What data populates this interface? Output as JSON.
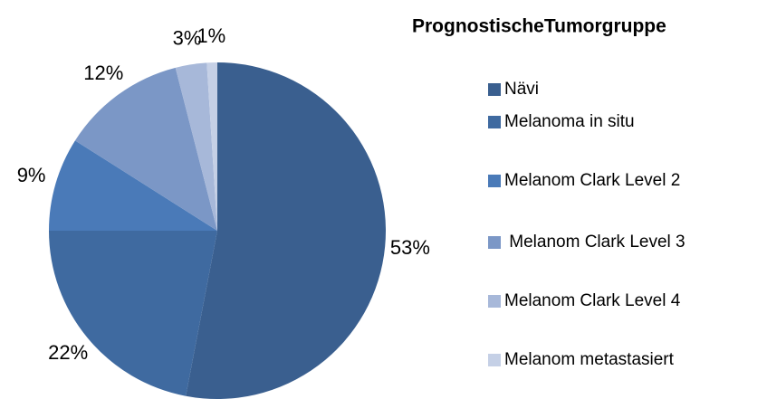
{
  "chart_data": {
    "type": "pie",
    "legend_title": "PrognostischeTumorgruppe",
    "categories": [
      "Nävi",
      "Melanoma in situ",
      "Melanom Clark Level 2",
      " Melanom Clark Level 3",
      "Melanom Clark Level 4",
      "Melanom metastasiert"
    ],
    "values": [
      53,
      22,
      9,
      12,
      3,
      1
    ],
    "value_labels": [
      "53%",
      "22%",
      "9%",
      "12%",
      "3%",
      "1%"
    ],
    "colors": [
      "#3a5f8f",
      "#3f6aa0",
      "#4a7ab8",
      "#7b97c6",
      "#a7b8d9",
      "#c5d0e6"
    ],
    "legend": "right"
  }
}
